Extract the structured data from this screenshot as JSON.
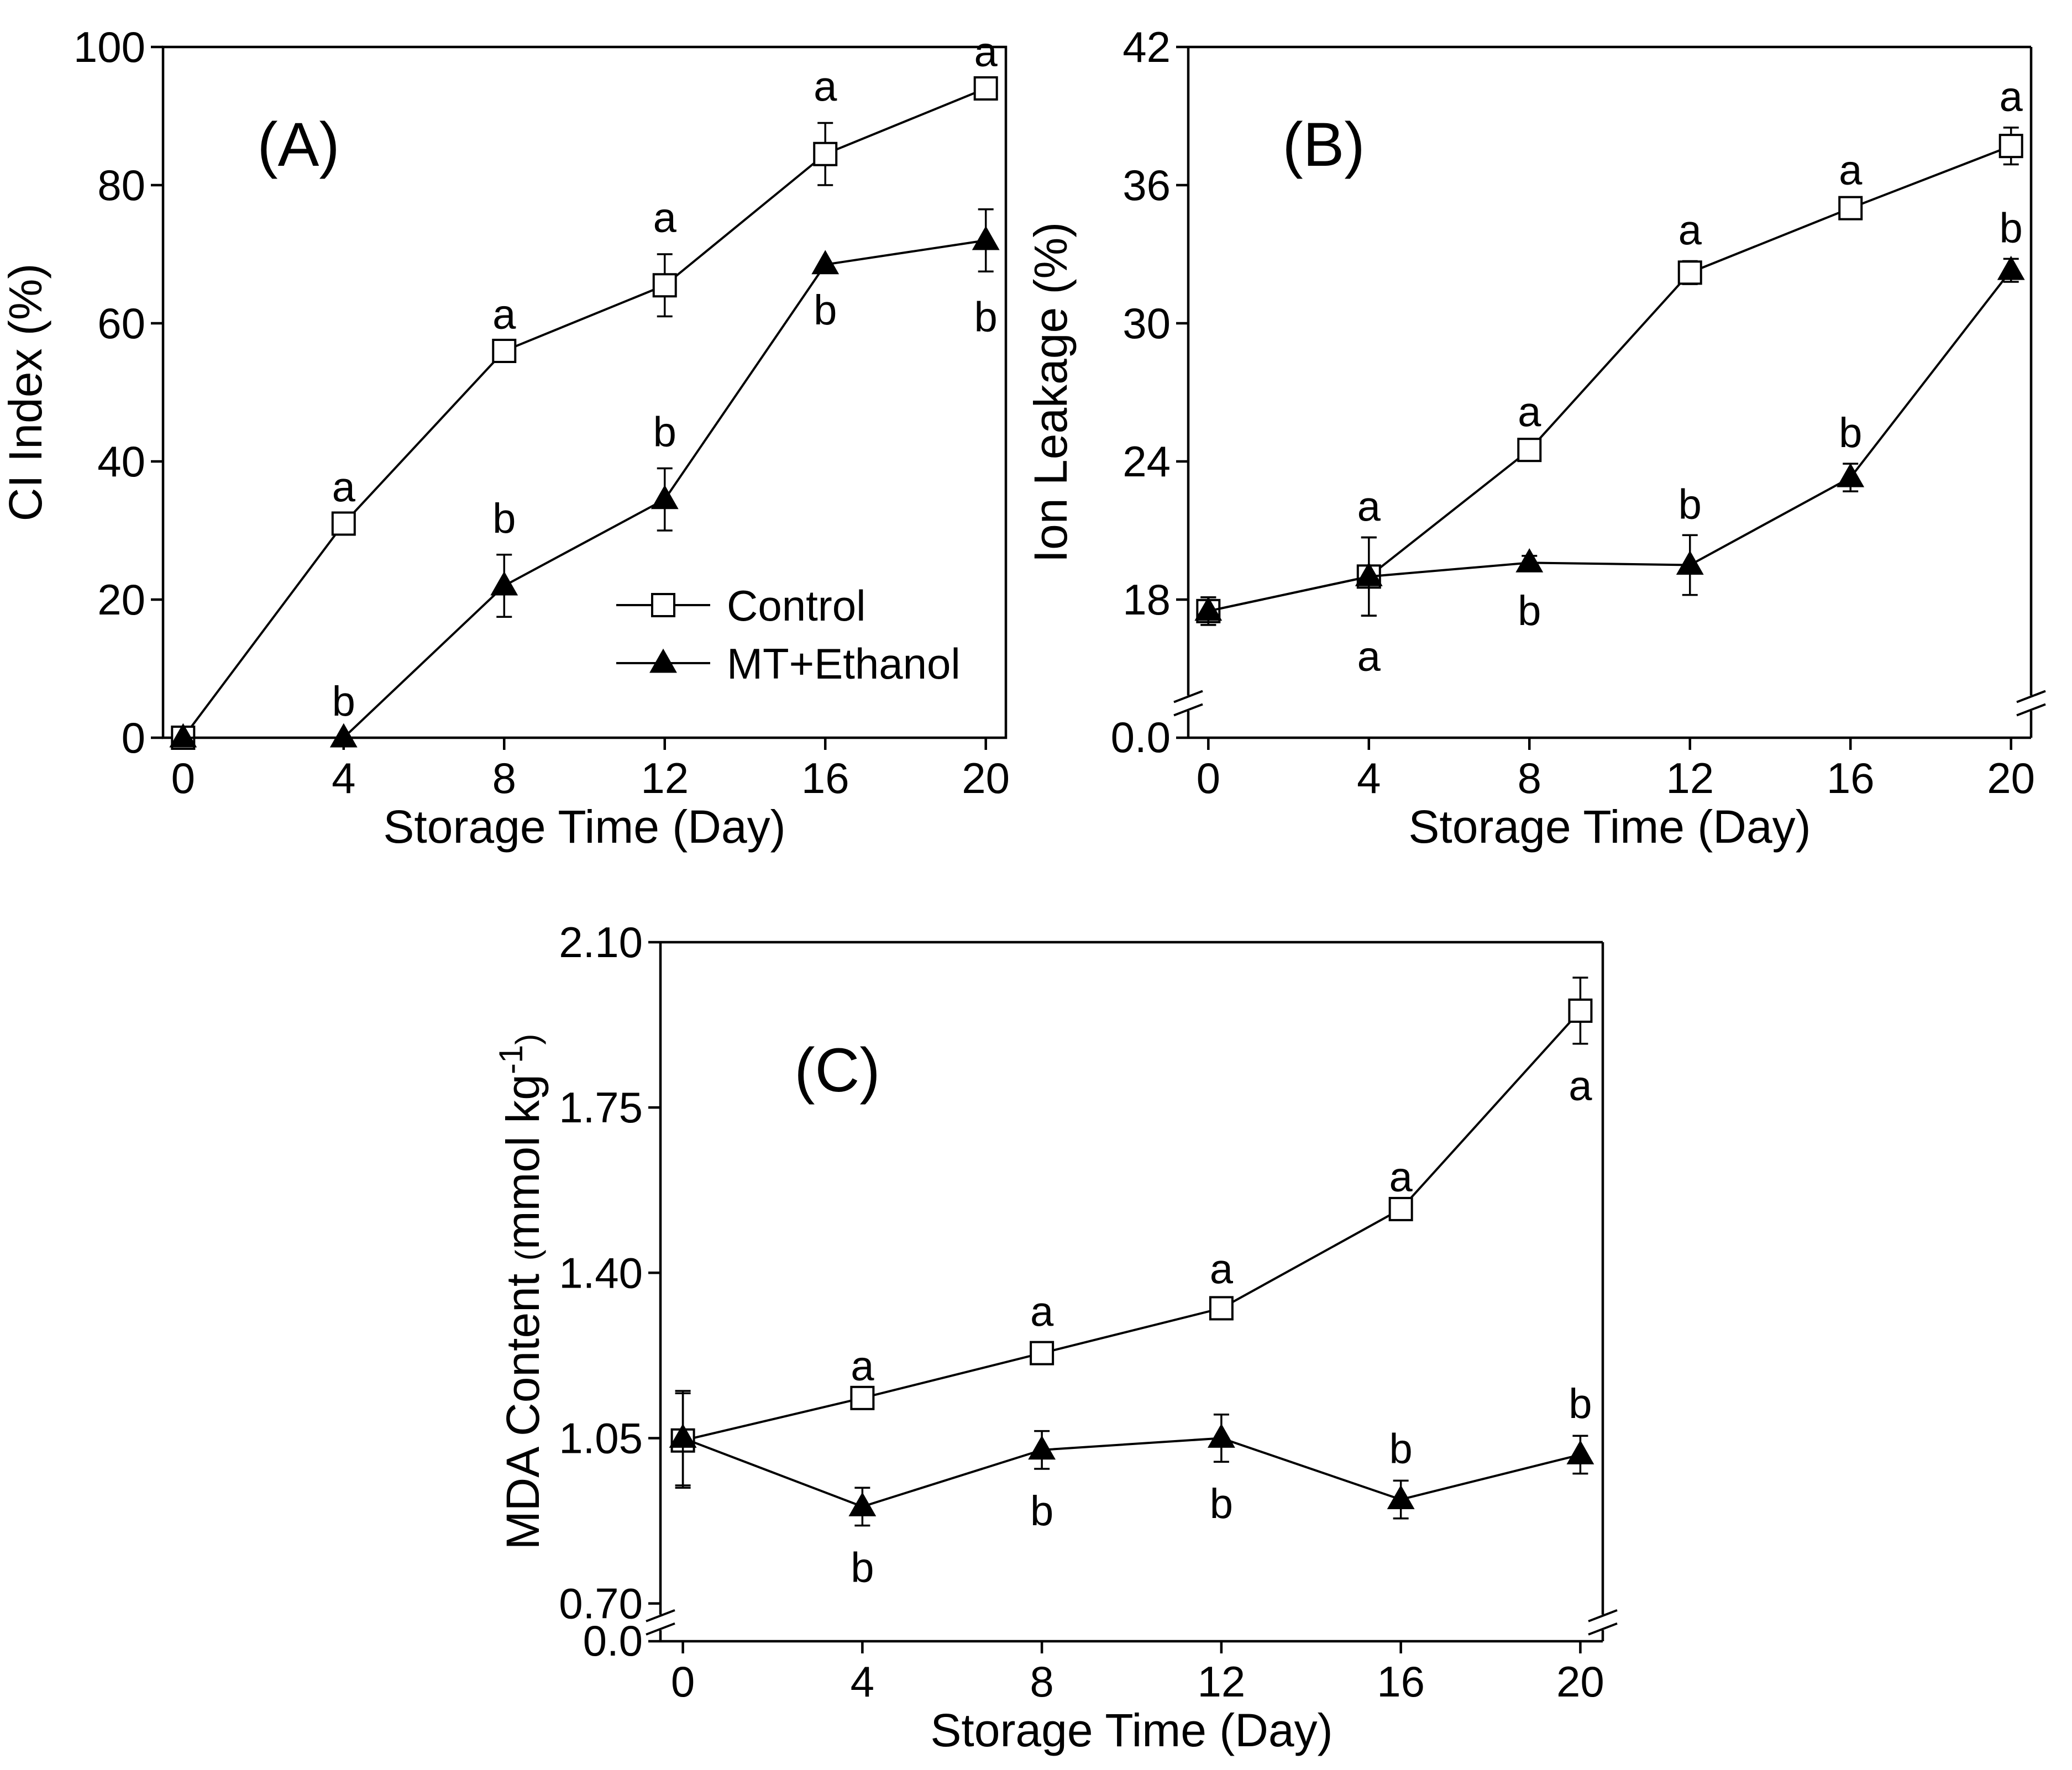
{
  "chart_data": [
    {
      "type": "line",
      "panel_label": "(A)",
      "xlabel": "Storage Time (Day)",
      "ylabel": "CI Index (%)",
      "xlim": [
        -0.5,
        20.5
      ],
      "ylim": [
        0,
        100
      ],
      "x_ticks": [
        0,
        4,
        8,
        12,
        16,
        20
      ],
      "x_tick_labels": [
        "0",
        "4",
        "8",
        "12",
        "16",
        "20"
      ],
      "y_ticks": [
        0,
        20,
        40,
        60,
        80,
        100
      ],
      "y_tick_labels": [
        "0",
        "20",
        "40",
        "60",
        "80",
        "100"
      ],
      "axis_break": null,
      "legend": [
        {
          "series": "control",
          "label": "Control"
        },
        {
          "series": "mt_ethanol",
          "label": "MT+Ethanol"
        }
      ],
      "series": [
        {
          "key": "control",
          "name": "Control",
          "marker": "open-square",
          "x": [
            0,
            4,
            8,
            12,
            16,
            20
          ],
          "y": [
            0,
            31,
            56,
            65.5,
            84.5,
            94
          ],
          "err": [
            0,
            0,
            0,
            4.5,
            4.5,
            0
          ],
          "labels": [
            "",
            "a",
            "a",
            "a",
            "a",
            "a"
          ],
          "label_pos": [
            "above",
            "above",
            "above",
            "above",
            "above",
            "above"
          ]
        },
        {
          "key": "mt_ethanol",
          "name": "MT+Ethanol",
          "marker": "filled-triangle",
          "x": [
            0,
            4,
            8,
            12,
            16,
            20
          ],
          "y": [
            0,
            0,
            22,
            34.5,
            68.5,
            72
          ],
          "err": [
            0,
            0,
            4.5,
            4.5,
            0,
            4.5
          ],
          "labels": [
            "",
            "b",
            "b",
            "b",
            "b",
            "b"
          ],
          "label_pos": [
            "above",
            "above",
            "above",
            "above",
            "below",
            "below"
          ]
        }
      ]
    },
    {
      "type": "line",
      "panel_label": "(B)",
      "xlabel": "Storage Time (Day)",
      "ylabel": "Ion Leakage (%)",
      "xlim": [
        -0.5,
        20.5
      ],
      "ylim": [
        12,
        42
      ],
      "x_ticks": [
        0,
        4,
        8,
        12,
        16,
        20
      ],
      "x_tick_labels": [
        "0",
        "4",
        "8",
        "12",
        "16",
        "20"
      ],
      "y_ticks": [
        18,
        24,
        30,
        36,
        42
      ],
      "y_tick_labels": [
        "18",
        "24",
        "30",
        "36",
        "42"
      ],
      "axis_break": {
        "bottom_label": "0.0",
        "at": 13.5
      },
      "series": [
        {
          "key": "control",
          "name": "Control",
          "marker": "open-square",
          "x": [
            0,
            4,
            8,
            12,
            16,
            20
          ],
          "y": [
            17.5,
            19.0,
            24.5,
            32.2,
            35.0,
            37.7
          ],
          "err": [
            0.6,
            1.7,
            0.3,
            0.5,
            0.3,
            0.8
          ],
          "labels": [
            "",
            "a",
            "a",
            "a",
            "a",
            "a"
          ],
          "label_pos": [
            "above",
            "above",
            "above",
            "above",
            "above",
            "above"
          ]
        },
        {
          "key": "mt_ethanol",
          "name": "MT+Ethanol",
          "marker": "filled-triangle",
          "x": [
            0,
            4,
            8,
            12,
            16,
            20
          ],
          "y": [
            17.5,
            19.0,
            19.6,
            19.5,
            23.3,
            32.3
          ],
          "err": [
            0.6,
            1.7,
            0.3,
            1.3,
            0.6,
            0.5
          ],
          "labels": [
            "",
            "a",
            "b",
            "b",
            "b",
            "b"
          ],
          "label_pos": [
            "above",
            "below",
            "below",
            "above",
            "above",
            "above"
          ]
        }
      ]
    },
    {
      "type": "line",
      "panel_label": "(C)",
      "xlabel": "Storage Time (Day)",
      "ylabel_main": "MDA Content",
      "ylabel_unit": "mmol kg",
      "ylabel_superscript": "-1",
      "ylabel_open_paren": "(",
      "ylabel_close_paren": ")",
      "xlim": [
        -0.5,
        20.5
      ],
      "ylim": [
        0.62,
        2.1
      ],
      "x_ticks": [
        0,
        4,
        8,
        12,
        16,
        20
      ],
      "x_tick_labels": [
        "0",
        "4",
        "8",
        "12",
        "16",
        "20"
      ],
      "y_ticks": [
        0.7,
        1.05,
        1.4,
        1.75,
        2.1
      ],
      "y_tick_labels": [
        "0.70",
        "1.05",
        "1.40",
        "1.75",
        "2.10"
      ],
      "axis_break": {
        "bottom_label": "0.0",
        "at": 0.66
      },
      "series": [
        {
          "key": "control",
          "name": "Control",
          "marker": "open-square",
          "x": [
            0,
            4,
            8,
            12,
            16,
            20
          ],
          "y": [
            1.045,
            1.135,
            1.23,
            1.325,
            1.535,
            1.955
          ],
          "err": [
            0.1,
            0.0,
            0.02,
            0.015,
            0.0,
            0.07
          ],
          "labels": [
            "",
            "a",
            "a",
            "a",
            "a",
            "a"
          ],
          "label_pos": [
            "above",
            "above",
            "above",
            "above",
            "above",
            "below"
          ]
        },
        {
          "key": "mt_ethanol",
          "name": "MT+Ethanol",
          "marker": "filled-triangle",
          "x": [
            0,
            4,
            8,
            12,
            16,
            20
          ],
          "y": [
            1.05,
            0.905,
            1.025,
            1.05,
            0.92,
            1.015
          ],
          "err": [
            0.1,
            0.04,
            0.04,
            0.05,
            0.04,
            0.04
          ],
          "labels": [
            "",
            "b",
            "b",
            "b",
            "b",
            "b"
          ],
          "label_pos": [
            "above",
            "below",
            "below",
            "below",
            "above",
            "above"
          ]
        }
      ]
    }
  ]
}
